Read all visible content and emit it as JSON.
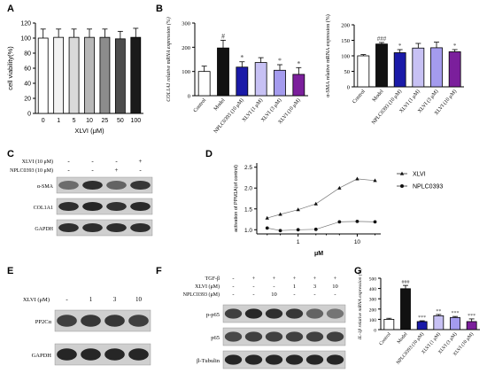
{
  "colors": {
    "white": "#ffffff",
    "black": "#111111",
    "navy": "#1a1aa8",
    "lavender": "#b7b0f0",
    "periwinkle": "#8f86e8",
    "purple": "#7b1f9c",
    "grey": "#888888",
    "blot_bg": "#c9c9c9",
    "band": "#1e1e1e"
  },
  "panels": {
    "A": "A",
    "B": "B",
    "C": "C",
    "D": "D",
    "E": "E",
    "F": "F",
    "G": "G"
  },
  "chart_data": [
    {
      "id": "A",
      "type": "bar",
      "categories": [
        "0",
        "1",
        "5",
        "10",
        "25",
        "50",
        "100"
      ],
      "values": [
        100,
        101,
        101,
        101,
        101,
        99,
        101
      ],
      "errors": [
        12,
        11,
        11,
        11,
        11,
        10,
        12
      ],
      "xlabel": "XLVI (μM)",
      "ylabel": "cell viability(%)",
      "yticks": [
        "0",
        "20",
        "40",
        "60",
        "80",
        "100",
        "120"
      ],
      "ylim": [
        0,
        120
      ],
      "bar_colors": [
        "#ffffff",
        "#f2f2f2",
        "#d9d9d9",
        "#b8b8b8",
        "#8c8c8c",
        "#4d4d4d",
        "#1a1a1a"
      ]
    },
    {
      "id": "B1",
      "type": "bar",
      "categories": [
        "Control",
        "Model",
        "NPLC0393 (10 μM)",
        "XLVI (1 μM)",
        "XLVI (3 μM)",
        "XLVI (10 μM)"
      ],
      "values": [
        100,
        197,
        118,
        137,
        105,
        88
      ],
      "errors": [
        22,
        32,
        22,
        20,
        23,
        28
      ],
      "marks": [
        "",
        "#",
        "*",
        "",
        "*",
        "*"
      ],
      "ylabel": "COL1A1 relative mRNA expression (%)",
      "yticks": [
        "0",
        "100",
        "200",
        "300"
      ],
      "ylim": [
        0,
        300
      ],
      "bar_colors": [
        "#ffffff",
        "#111111",
        "#1a1aa8",
        "#c7c1f4",
        "#a49bee",
        "#7b1f9c"
      ]
    },
    {
      "id": "B2",
      "type": "bar",
      "categories": [
        "Control",
        "Model",
        "NPLC0393 (10 μM)",
        "XLVI (1 μM)",
        "XLVI (3 μM)",
        "XLVI (10 μM)"
      ],
      "values": [
        100,
        138,
        110,
        125,
        126,
        113
      ],
      "errors": [
        4,
        5,
        10,
        15,
        18,
        7
      ],
      "marks": [
        "",
        "###",
        "*",
        "",
        "",
        "*"
      ],
      "ylabel": "α-SMA relative mRNA expression (%)",
      "yticks": [
        "0",
        "50",
        "100",
        "150",
        "200"
      ],
      "ylim": [
        0,
        200
      ],
      "bar_colors": [
        "#ffffff",
        "#111111",
        "#1a1aa8",
        "#c7c1f4",
        "#a49bee",
        "#7b1f9c"
      ]
    },
    {
      "id": "D",
      "type": "scatter",
      "series": [
        {
          "name": "XLVI",
          "marker": "triangle",
          "x": [
            0.3,
            0.5,
            1,
            2,
            5,
            10,
            20
          ],
          "y": [
            1.28,
            1.37,
            1.48,
            1.62,
            2.0,
            2.22,
            2.18
          ]
        },
        {
          "name": "NPLC0393",
          "marker": "circle",
          "x": [
            0.3,
            0.5,
            1,
            2,
            5,
            10,
            20
          ],
          "y": [
            1.04,
            0.98,
            1.0,
            1.01,
            1.19,
            1.2,
            1.19
          ]
        }
      ],
      "xlabel": "μM",
      "ylabel": "activation of PPM1A(of control)",
      "xticks": [
        "1",
        "10"
      ],
      "yticks": [
        "1.0",
        "1.5",
        "2.0",
        "2.5"
      ],
      "ylim": [
        0.9,
        2.6
      ],
      "xscale": "log",
      "legend": "right"
    },
    {
      "id": "G",
      "type": "bar",
      "categories": [
        "Control",
        "Model",
        "NPLC0393 (10 μM)",
        "XLVI (1 μM)",
        "XLVI (3 μM)",
        "XLVI (10 μM)"
      ],
      "values": [
        100,
        398,
        78,
        135,
        118,
        78
      ],
      "errors": [
        10,
        32,
        8,
        12,
        10,
        26
      ],
      "marks": [
        "",
        "###",
        "***",
        "**",
        "***",
        "***"
      ],
      "ylabel": "IL-1β relative mRNA expression (%)",
      "yticks": [
        "0",
        "100",
        "200",
        "300",
        "400",
        "500"
      ],
      "ylim": [
        0,
        500
      ],
      "bar_colors": [
        "#ffffff",
        "#111111",
        "#1a1aa8",
        "#c7c1f4",
        "#a49bee",
        "#7b1f9c"
      ]
    }
  ],
  "blotC": {
    "cond_labels": [
      "XLVI (10 μM)",
      "NPLC0393 (10 μM)"
    ],
    "signs": [
      [
        "-",
        "-",
        "-",
        "+"
      ],
      [
        "-",
        "-",
        "+",
        "-"
      ]
    ],
    "bands": [
      "α-SMA",
      "COL1A1",
      "GAPDH"
    ]
  },
  "blotE": {
    "cond_label": "XLVI (μM)",
    "cols": [
      "-",
      "1",
      "3",
      "10"
    ],
    "bands": [
      "PP2Cα",
      "GAPDH"
    ]
  },
  "blotF": {
    "cond_labels": [
      "TGF-β",
      "XLVI (μM)",
      "NPLC0393 (μM)"
    ],
    "signs": [
      [
        "-",
        "+",
        "+",
        "+",
        "+",
        "+"
      ],
      [
        "-",
        "-",
        "-",
        "1",
        "3",
        "10"
      ],
      [
        "-",
        "-",
        "10",
        "-",
        "-",
        "-"
      ]
    ],
    "bands": [
      "p-p65",
      "p65",
      "β-Tubulin"
    ]
  }
}
